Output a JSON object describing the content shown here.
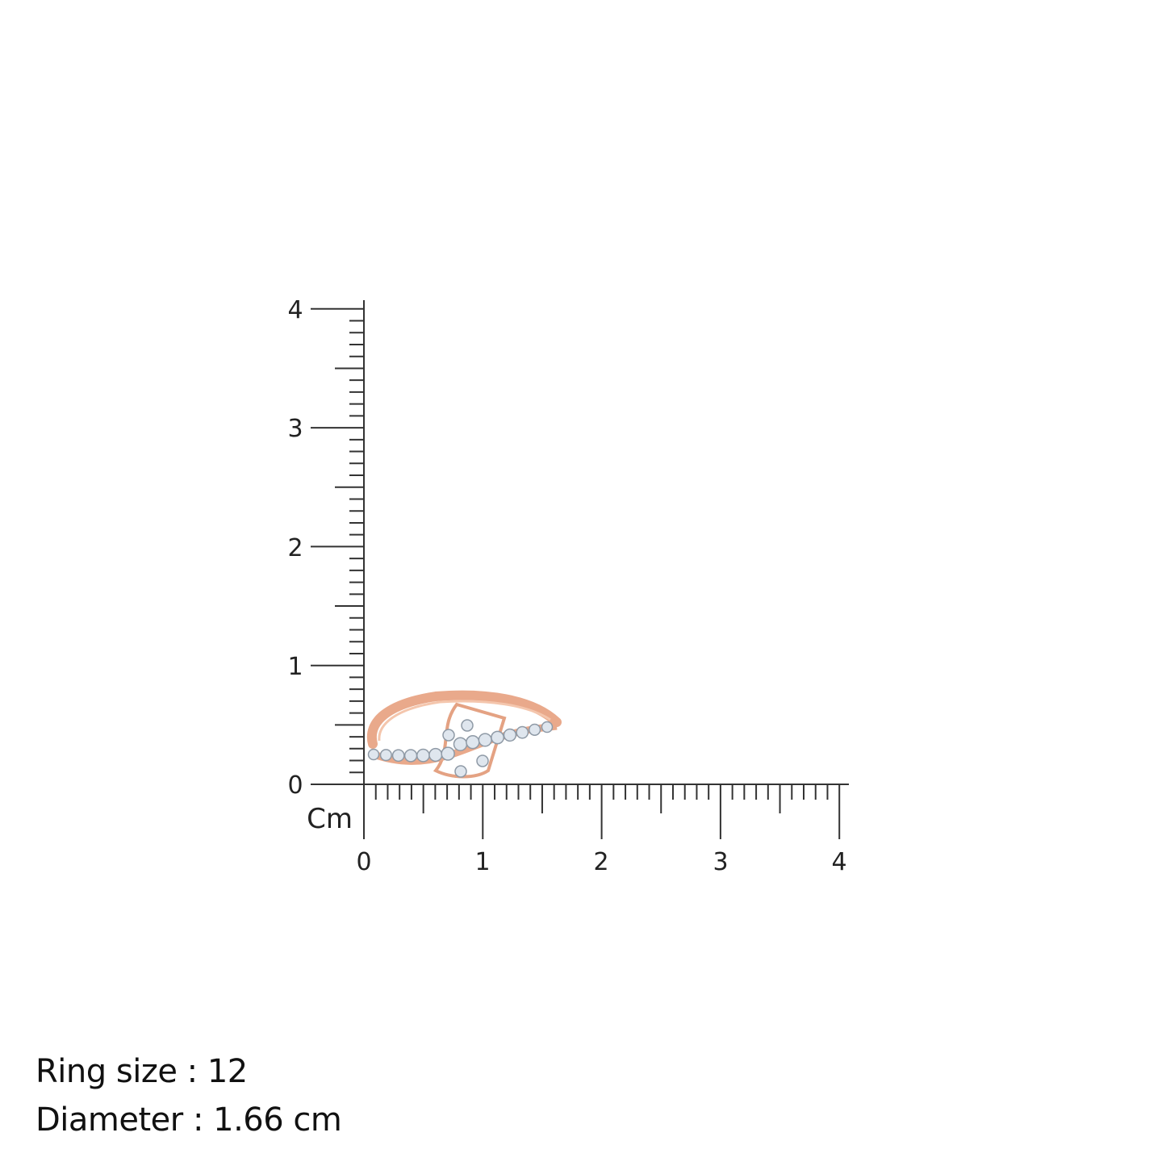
{
  "ruler": {
    "unit_label": "Cm",
    "x_ticks": [
      "0",
      "1",
      "2",
      "3",
      "4"
    ],
    "y_ticks": [
      "0",
      "1",
      "2",
      "3",
      "4"
    ],
    "range_cm": [
      0,
      4
    ],
    "minor_divisions_per_cm": 10
  },
  "product": {
    "metal_color": "#e9a98b",
    "stone_color": "#dfe6ee"
  },
  "info": {
    "ring_size": "Ring size : 12",
    "diameter": "Diameter : 1.66 cm"
  }
}
